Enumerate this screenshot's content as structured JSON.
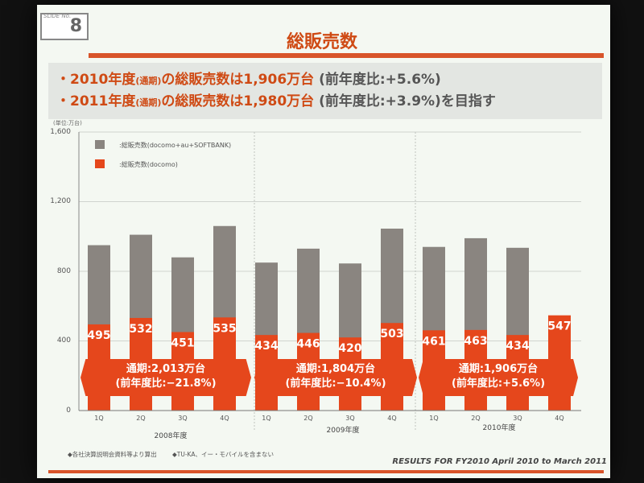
{
  "slide": {
    "label": "SLIDE No.",
    "number": "8"
  },
  "title": "総販売数",
  "bullets": [
    {
      "year": "・2010年度",
      "period": "(通期)",
      "text": "の総販売数は1,906万台",
      "note": "(前年度比:+5.6%)"
    },
    {
      "year": "・2011年度",
      "period": "(通期)",
      "text": "の総販売数は1,980万台",
      "note": "(前年度比:+3.9%)を目指す"
    }
  ],
  "unit_label": "(単位:万台)",
  "legend": [
    {
      "label": ":総販売数(docomo+au+SOFTBANK)",
      "color": "#8a8580"
    },
    {
      "label": ":総販売数(docomo)",
      "color": "#e5471c"
    }
  ],
  "callouts": [
    {
      "line1": "通期:2,013万台",
      "line2": "(前年度比:−21.8%)"
    },
    {
      "line1": "通期:1,804万台",
      "line2": "(前年度比:−10.4%)"
    },
    {
      "line1": "通期:1,906万台",
      "line2": "(前年度比:+5.6%)"
    }
  ],
  "years": [
    "2008年度",
    "2009年度",
    "2010年度"
  ],
  "footnotes": [
    "◆各社決算説明会資料等より算出",
    "◆TU-KA、イー・モバイルを含まない"
  ],
  "footer": "RESULTS FOR FY2010   April 2010 to March 2011",
  "colors": {
    "accent": "#cf4a14",
    "gray_bar": "#8a8580",
    "orange_bar": "#e5471c"
  },
  "chart_data": {
    "type": "bar",
    "title": "総販売数",
    "ylabel": "(単位:万台)",
    "ylim": [
      0,
      1600
    ],
    "yticks": [
      "0",
      "400",
      "800",
      "1,200",
      "1,600"
    ],
    "categories": [
      "1Q",
      "2Q",
      "3Q",
      "4Q",
      "1Q",
      "2Q",
      "3Q",
      "4Q",
      "1Q",
      "2Q",
      "3Q",
      "4Q"
    ],
    "series": [
      {
        "name": ":総販売数(docomo+au+SOFTBANK)",
        "values": [
          950,
          1010,
          880,
          1060,
          850,
          930,
          845,
          1045,
          940,
          990,
          935,
          null
        ]
      },
      {
        "name": ":総販売数(docomo)",
        "values": [
          495,
          532,
          451,
          535,
          434,
          446,
          420,
          503,
          461,
          463,
          434,
          547
        ]
      }
    ]
  }
}
